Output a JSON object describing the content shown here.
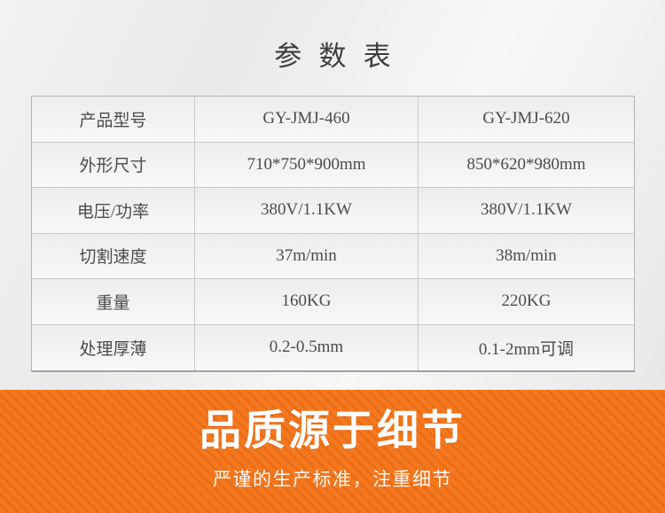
{
  "header": {
    "title": "参数表"
  },
  "table": {
    "rows": [
      {
        "cells": [
          "产品型号",
          "GY-JMJ-460",
          "GY-JMJ-620"
        ]
      },
      {
        "cells": [
          "外形尺寸",
          "710*750*900mm",
          "850*620*980mm"
        ]
      },
      {
        "cells": [
          "电压/功率",
          "380V/1.1KW",
          "380V/1.1KW"
        ]
      },
      {
        "cells": [
          "切割速度",
          "37m/min",
          "38m/min"
        ]
      },
      {
        "cells": [
          "重量",
          "160KG",
          "220KG"
        ]
      },
      {
        "cells": [
          "处理厚薄",
          "0.2-0.5mm",
          "0.1-2mm可调"
        ]
      }
    ]
  },
  "banner": {
    "heading": "品质源于细节",
    "subheading": "严谨的生产标准，注重细节",
    "background_color": "#f5771e",
    "stripe_color": "#e0660f",
    "text_color": "#ffffff"
  },
  "colors": {
    "page_background": "#ededec",
    "table_border": "#c9c9c7",
    "table_text": "#4c4c4c",
    "title_text": "#3d3d3d"
  }
}
